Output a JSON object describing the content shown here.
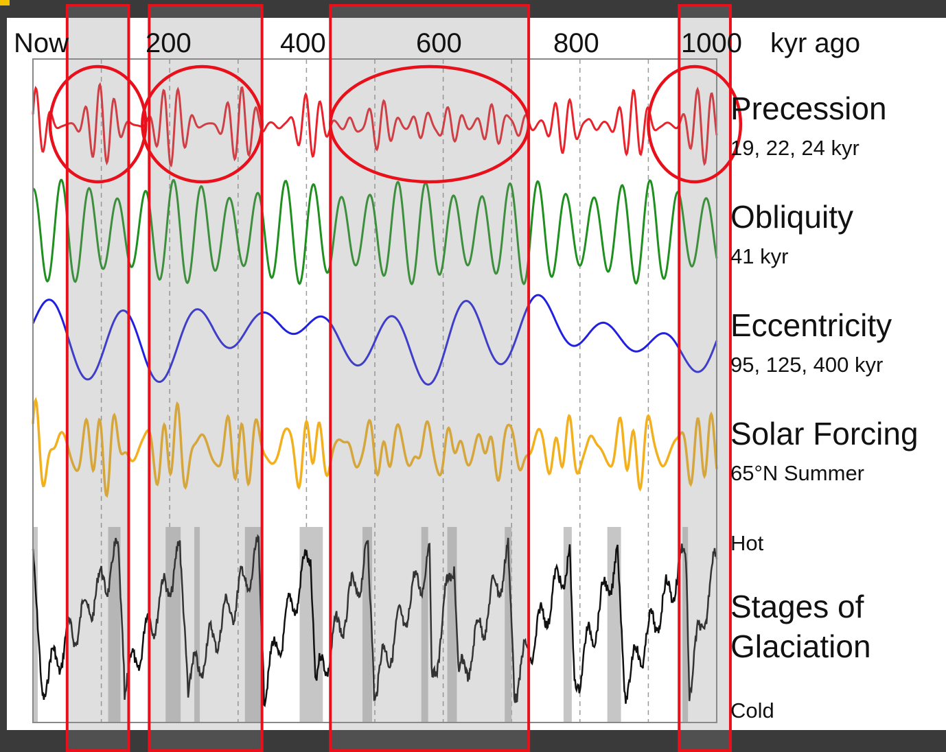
{
  "chart_data": {
    "type": "line",
    "x_axis": {
      "tick_labels": [
        "Now",
        "200",
        "400",
        "600",
        "800",
        "1000"
      ],
      "tick_values": [
        0,
        200,
        400,
        600,
        800,
        1000
      ],
      "unit": "kyr ago",
      "range": [
        0,
        1000
      ],
      "gridlines": "dashed vertical every 100 kyr"
    },
    "series": [
      {
        "name": "Precession",
        "detail": "19, 22, 24 kyr",
        "color": "#e8232b",
        "periods_kyr": [
          19,
          22,
          24
        ],
        "style": "high-frequency oscillation with slowly varying amplitude"
      },
      {
        "name": "Obliquity",
        "detail": "41 kyr",
        "color": "#1f8f1f",
        "periods_kyr": [
          41
        ],
        "style": "regular oscillation"
      },
      {
        "name": "Eccentricity",
        "detail": "95, 125, 400 kyr",
        "color": "#2020e0",
        "periods_kyr": [
          95,
          125,
          400
        ],
        "style": "smooth long-period oscillation"
      },
      {
        "name": "Solar Forcing",
        "detail": "65°N Summer",
        "color": "#f2b01e",
        "style": "combined precession and obliquity signal"
      },
      {
        "name": "Stages of Glaciation",
        "top_label": "Hot",
        "bottom_label": "Cold",
        "color": "#111111",
        "style": "sawtooth glacial cycles with interglacial highs shaded"
      }
    ],
    "interglacial_shading_kyr": [
      [
        0,
        7
      ],
      [
        110,
        128
      ],
      [
        194,
        216
      ],
      [
        236,
        244
      ],
      [
        310,
        336
      ],
      [
        390,
        424
      ],
      [
        482,
        496
      ],
      [
        568,
        578
      ],
      [
        606,
        620
      ],
      [
        690,
        700
      ],
      [
        776,
        788
      ],
      [
        840,
        860
      ],
      [
        950,
        958
      ]
    ],
    "highlight_bands_kyr": [
      [
        50,
        140
      ],
      [
        170,
        335
      ],
      [
        435,
        725
      ],
      [
        945,
        1020
      ]
    ],
    "highlight_circles_precession_kyr": [
      [
        25,
        165
      ],
      [
        160,
        335
      ],
      [
        435,
        725
      ],
      [
        900,
        1035
      ]
    ],
    "highlight_color": "#e8101a"
  }
}
